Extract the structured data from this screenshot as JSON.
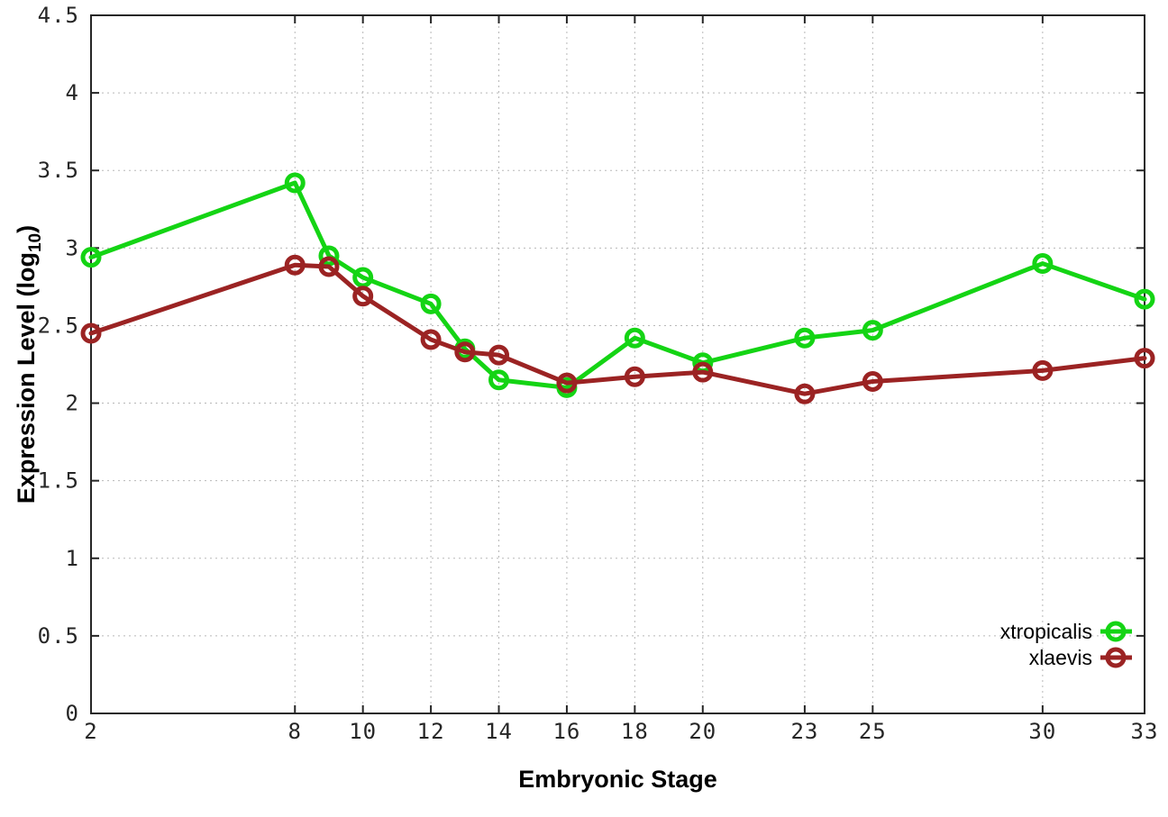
{
  "chart_data": {
    "type": "line",
    "x": [
      2,
      8,
      9,
      10,
      12,
      13,
      14,
      16,
      18,
      20,
      23,
      25,
      30,
      33
    ],
    "series": [
      {
        "name": "xtropicalis",
        "color": "#14d414",
        "values": [
          2.94,
          3.42,
          2.95,
          2.81,
          2.64,
          2.35,
          2.15,
          2.1,
          2.42,
          2.26,
          2.42,
          2.47,
          2.9,
          2.67
        ]
      },
      {
        "name": "xlaevis",
        "color": "#9b2323",
        "values": [
          2.45,
          2.89,
          2.88,
          2.69,
          2.41,
          2.33,
          2.31,
          2.13,
          2.17,
          2.2,
          2.06,
          2.14,
          2.21,
          2.29
        ]
      }
    ],
    "xlabel": "Embryonic Stage",
    "ylabel": {
      "prefix": "Expression Level (log",
      "sub": "10",
      "suffix": ")"
    },
    "x_ticks": [
      2,
      8,
      10,
      12,
      14,
      16,
      18,
      20,
      23,
      25,
      30,
      33
    ],
    "y_ticks": [
      0,
      0.5,
      1,
      1.5,
      2,
      2.5,
      3,
      3.5,
      4,
      4.5
    ],
    "y_tick_labels": [
      "0",
      "0.5",
      "1",
      "1.5",
      "2",
      "2.5",
      "3",
      "3.5",
      "4",
      "4.5"
    ],
    "xlim": [
      2,
      33
    ],
    "ylim": [
      0,
      4.5
    ],
    "grid": true,
    "legend_position": "bottom-right",
    "colors": {
      "grid": "#b8b8b8",
      "border": "#262626",
      "background": "#ffffff"
    }
  }
}
